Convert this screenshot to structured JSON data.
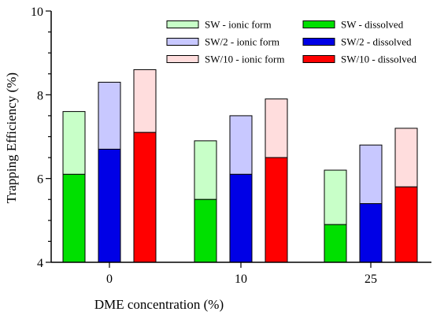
{
  "chart_data": {
    "type": "bar",
    "stacked": true,
    "xlabel": "DME concentration (%)",
    "ylabel": "Trapping Efficiency (%)",
    "ylim": [
      4,
      10
    ],
    "yticks": [
      4,
      6,
      8,
      10
    ],
    "categories": [
      "0",
      "10",
      "25"
    ],
    "legend_placement": "top-right",
    "groups": [
      {
        "name": "SW",
        "color_dissolved": "#00e000",
        "color_ionic": "#c8ffc8",
        "dissolved": [
          6.1,
          5.5,
          4.9
        ],
        "ionic_total": [
          7.6,
          6.9,
          6.2
        ]
      },
      {
        "name": "SW/2",
        "color_dissolved": "#0000e6",
        "color_ionic": "#c8c8ff",
        "dissolved": [
          6.7,
          6.1,
          5.4
        ],
        "ionic_total": [
          8.3,
          7.5,
          6.8
        ]
      },
      {
        "name": "SW/10",
        "color_dissolved": "#ff0000",
        "color_ionic": "#ffdddd",
        "dissolved": [
          7.1,
          6.5,
          5.8
        ],
        "ionic_total": [
          8.6,
          7.9,
          7.2
        ]
      }
    ],
    "legend": [
      {
        "label": "SW - ionic form",
        "color": "#c8ffc8"
      },
      {
        "label": "SW/2 - ionic form",
        "color": "#c8c8ff"
      },
      {
        "label": "SW/10 - ionic form",
        "color": "#ffdddd"
      },
      {
        "label": "SW - dissolved",
        "color": "#00e000"
      },
      {
        "label": "SW/2 - dissolved",
        "color": "#0000e6"
      },
      {
        "label": "SW/10 - dissolved",
        "color": "#ff0000"
      }
    ]
  }
}
